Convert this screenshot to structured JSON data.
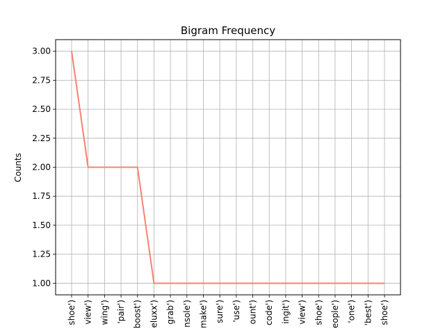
{
  "chart_data": {
    "type": "line",
    "title": "Bigram Frequency",
    "xlabel": "",
    "ylabel": "Counts",
    "ylim": [
      0.9,
      3.1
    ],
    "yticks": [
      "1.00",
      "1.25",
      "1.50",
      "1.75",
      "2.00",
      "2.25",
      "2.50",
      "2.75",
      "3.00"
    ],
    "grid": true,
    "line_color": "#fa8072",
    "categories": [
      "shoe')",
      " view')",
      "wing')",
      "'pair')",
      "boost')",
      "eluxx')",
      "grab')",
      "nsole')",
      "make')",
      "sure')",
      "'use')",
      "ount')",
      "code')",
      "ingit')",
      " view')",
      "shoe')",
      "eople')",
      "'one')",
      "'best')",
      "shoe')"
    ],
    "values": [
      3,
      2,
      2,
      2,
      2,
      1,
      1,
      1,
      1,
      1,
      1,
      1,
      1,
      1,
      1,
      1,
      1,
      1,
      1,
      1
    ]
  }
}
